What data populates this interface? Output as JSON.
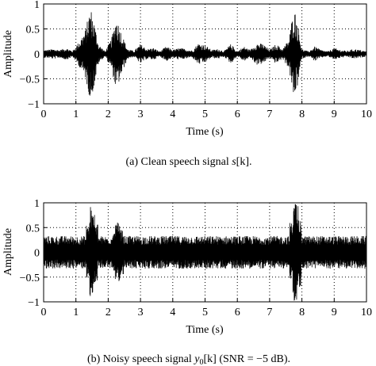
{
  "chart_data": [
    {
      "type": "line",
      "xlabel": "Time (s)",
      "ylabel": "Amplitude",
      "xlim": [
        0,
        10
      ],
      "ylim": [
        -1,
        1
      ],
      "x_ticks": [
        "0",
        "1",
        "2",
        "3",
        "4",
        "5",
        "6",
        "7",
        "8",
        "9",
        "10"
      ],
      "y_ticks": [
        "1",
        "0.5",
        "0",
        "−0.5",
        "−1"
      ],
      "grid": "dotted",
      "caption": "(a) Clean speech signal s[k].",
      "series": [
        {
          "values": {
            "description_free": true,
            "envelope_x": [
              0.1,
              0.3,
              0.5,
              0.7,
              0.9,
              1.1,
              1.3,
              1.45,
              1.55,
              1.7,
              1.9,
              2.1,
              2.25,
              2.35,
              2.45,
              2.6,
              2.8,
              3.0,
              3.2,
              3.4,
              3.6,
              3.8,
              4.0,
              4.2,
              4.4,
              4.6,
              4.8,
              5.0,
              5.2,
              5.4,
              5.6,
              5.8,
              6.0,
              6.2,
              6.4,
              6.6,
              6.8,
              7.0,
              7.2,
              7.4,
              7.6,
              7.75,
              7.85,
              8.0,
              8.2,
              8.4,
              8.6,
              8.8,
              9.0,
              9.2,
              9.4,
              9.6,
              9.8,
              10.0
            ],
            "envelope_amp": [
              0.08,
              0.1,
              0.08,
              0.12,
              0.06,
              0.25,
              0.5,
              0.95,
              0.7,
              0.2,
              0.05,
              0.3,
              0.75,
              0.55,
              0.35,
              0.1,
              0.06,
              0.2,
              0.1,
              0.12,
              0.05,
              0.15,
              0.08,
              0.12,
              0.1,
              0.07,
              0.22,
              0.18,
              0.08,
              0.1,
              0.06,
              0.2,
              0.05,
              0.15,
              0.08,
              0.22,
              0.2,
              0.08,
              0.2,
              0.1,
              0.3,
              0.95,
              0.7,
              0.1,
              0.05,
              0.15,
              0.08,
              0.05,
              0.12,
              0.08,
              0.06,
              0.1,
              0.08,
              0.05
            ]
          }
        }
      ]
    },
    {
      "type": "line",
      "xlabel": "Time (s)",
      "ylabel": "Amplitude",
      "xlim": [
        0,
        10
      ],
      "ylim": [
        -1,
        1
      ],
      "x_ticks": [
        "0",
        "1",
        "2",
        "3",
        "4",
        "5",
        "6",
        "7",
        "8",
        "9",
        "10"
      ],
      "y_ticks": [
        "1",
        "0.5",
        "0",
        "−0.5",
        "−1"
      ],
      "grid": "dotted",
      "caption": "(b) Noisy speech signal y0[k] (SNR = −5 dB).",
      "series": [
        {
          "values": {
            "noise_floor": 0.3,
            "envelope_x": [
              1.4,
              1.5,
              1.6,
              2.2,
              2.3,
              2.4,
              7.7,
              7.8,
              7.9
            ],
            "envelope_amp": [
              0.55,
              0.95,
              0.6,
              0.4,
              0.6,
              0.45,
              0.6,
              1.0,
              0.7
            ]
          }
        }
      ]
    }
  ],
  "captions": {
    "a_prefix": "(a) Clean speech signal ",
    "a_var": "s",
    "a_suffix": "[k].",
    "b_prefix": "(b) Noisy speech signal ",
    "b_var": "y",
    "b_sub": "0",
    "b_suffix": "[k] (SNR = −5 dB)."
  }
}
